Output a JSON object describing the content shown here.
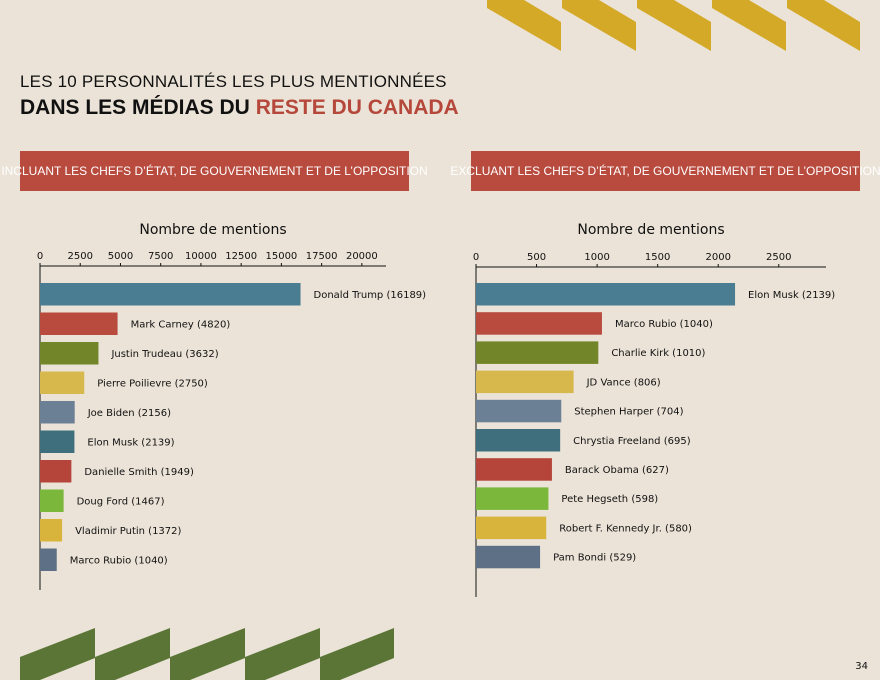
{
  "title": {
    "line1": "LES 10 PERSONNALITÉS LES PLUS MENTIONNÉES",
    "line2_prefix": "DANS LES MÉDIAS DU ",
    "line2_highlight": "RESTE DU CANADA"
  },
  "banners": {
    "left": "INCLUANT LES CHEFS D’ÉTAT, DE GOUVERNEMENT ET DE L’OPPOSITION",
    "right": "EXCLUANT LES CHEFS D’ÉTAT, DE GOUVERNEMENT ET DE L’OPPOSITION"
  },
  "page_number": "34",
  "colors": {
    "background": "#ebe3d7",
    "accent_red": "#b84a3e",
    "deco_yellow": "#d4a927",
    "deco_green": "#5a7535"
  },
  "chart_data": [
    {
      "type": "bar",
      "orientation": "horizontal",
      "title": "Nombre de mentions",
      "xlim": [
        0,
        21500
      ],
      "xticks": [
        0,
        2500,
        5000,
        7500,
        10000,
        12500,
        15000,
        17500,
        20000
      ],
      "categories": [
        "Donald Trump",
        "Mark Carney",
        "Justin Trudeau",
        "Pierre Poilievre",
        "Joe Biden",
        "Elon Musk",
        "Danielle Smith",
        "Doug Ford",
        "Vladimir Putin",
        "Marco Rubio"
      ],
      "values": [
        16189,
        4820,
        3632,
        2750,
        2156,
        2139,
        1949,
        1467,
        1372,
        1040
      ],
      "bar_labels": [
        "Donald Trump (16189)",
        "Mark Carney (4820)",
        "Justin Trudeau (3632)",
        "Pierre Poilievre (2750)",
        "Joe Biden (2156)",
        "Elon Musk (2139)",
        "Danielle Smith (1949)",
        "Doug Ford (1467)",
        "Vladimir Putin (1372)",
        "Marco Rubio (1040)"
      ],
      "colors": [
        "#4a7d91",
        "#b84a3e",
        "#728629",
        "#d6b84c",
        "#6b7f95",
        "#3f6f7c",
        "#b5443a",
        "#7ab73a",
        "#d8b43c",
        "#5d7085"
      ],
      "grid": false
    },
    {
      "type": "bar",
      "orientation": "horizontal",
      "title": "Nombre de mentions",
      "xlim": [
        0,
        2890
      ],
      "xticks": [
        0,
        500,
        1000,
        1500,
        2000,
        2500
      ],
      "categories": [
        "Elon Musk",
        "Marco Rubio",
        "Charlie Kirk",
        "JD Vance",
        "Stephen Harper",
        "Chrystia Freeland",
        "Barack Obama",
        "Pete Hegseth",
        "Robert F. Kennedy Jr.",
        "Pam Bondi"
      ],
      "values": [
        2139,
        1040,
        1010,
        806,
        704,
        695,
        627,
        598,
        580,
        529
      ],
      "bar_labels": [
        "Elon Musk (2139)",
        "Marco Rubio (1040)",
        "Charlie Kirk (1010)",
        "JD Vance (806)",
        "Stephen Harper (704)",
        "Chrystia Freeland (695)",
        "Barack Obama (627)",
        "Pete Hegseth (598)",
        "Robert F. Kennedy Jr. (580)",
        "Pam Bondi (529)"
      ],
      "colors": [
        "#4a7d91",
        "#b84a3e",
        "#728629",
        "#d6b84c",
        "#6b7f95",
        "#3f6f7c",
        "#b5443a",
        "#7ab73a",
        "#d8b43c",
        "#5d7085"
      ],
      "grid": false
    }
  ]
}
